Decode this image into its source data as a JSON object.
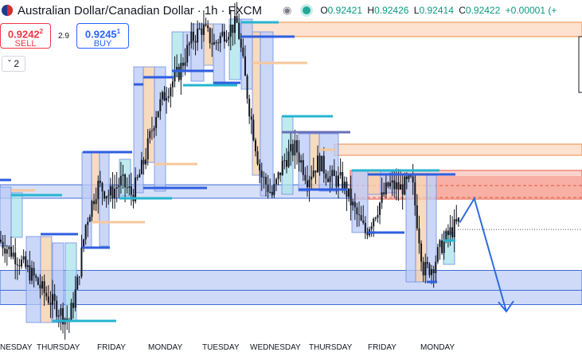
{
  "header": {
    "symbol_title": "Australian Dollar/Canadian Dollar",
    "separator": "·",
    "interval": "1h",
    "exchange": "FXCM",
    "eye_icon": "eye-icon",
    "status_color": "#26a69a",
    "ohlc": {
      "open_label": "O",
      "open": "0.92421",
      "high_label": "H",
      "high": "0.92426",
      "low_label": "L",
      "low": "0.92414",
      "close_label": "C",
      "close": "0.92422",
      "change": "+0.00001",
      "change_pct": "(+"
    }
  },
  "trade": {
    "sell_price_main": "0.9242",
    "sell_price_sup": "2",
    "sell_label": "SELL",
    "spread": "2.9",
    "buy_price_main": "0.9245",
    "buy_price_sup": "1",
    "buy_label": "BUY",
    "sell_color": "#f23645",
    "buy_color": "#2962ff"
  },
  "indicator_toggle": {
    "icon": "chevron-up-icon",
    "count": "2"
  },
  "x_axis_labels": [
    "NESDAY",
    "THURSDAY",
    "FRIDAY",
    "MONDAY",
    "TUESDAY",
    "WEDNESDAY",
    "THURSDAY",
    "FRIDAY",
    "MONDAY"
  ],
  "chart_data": {
    "type": "candlestick",
    "symbol": "AUDCAD",
    "interval": "1h",
    "last_price": 0.92422,
    "close_path": [
      {
        "t": 0,
        "v": 0.9239
      },
      {
        "t": 0.03,
        "v": 0.9234
      },
      {
        "t": 0.06,
        "v": 0.9228
      },
      {
        "t": 0.08,
        "v": 0.9223
      },
      {
        "t": 0.1,
        "v": 0.9219
      },
      {
        "t": 0.12,
        "v": 0.9215
      },
      {
        "t": 0.135,
        "v": 0.9226
      },
      {
        "t": 0.15,
        "v": 0.9244
      },
      {
        "t": 0.17,
        "v": 0.9255
      },
      {
        "t": 0.19,
        "v": 0.9252
      },
      {
        "t": 0.21,
        "v": 0.9256
      },
      {
        "t": 0.23,
        "v": 0.9252
      },
      {
        "t": 0.25,
        "v": 0.9262
      },
      {
        "t": 0.27,
        "v": 0.9276
      },
      {
        "t": 0.29,
        "v": 0.9283
      },
      {
        "t": 0.31,
        "v": 0.9288
      },
      {
        "t": 0.33,
        "v": 0.9297
      },
      {
        "t": 0.35,
        "v": 0.9301
      },
      {
        "t": 0.37,
        "v": 0.9296
      },
      {
        "t": 0.39,
        "v": 0.93
      },
      {
        "t": 0.41,
        "v": 0.9302
      },
      {
        "t": 0.43,
        "v": 0.9278
      },
      {
        "t": 0.45,
        "v": 0.9258
      },
      {
        "t": 0.47,
        "v": 0.9252
      },
      {
        "t": 0.49,
        "v": 0.9262
      },
      {
        "t": 0.51,
        "v": 0.9266
      },
      {
        "t": 0.53,
        "v": 0.9257
      },
      {
        "t": 0.55,
        "v": 0.9262
      },
      {
        "t": 0.57,
        "v": 0.9257
      },
      {
        "t": 0.59,
        "v": 0.9256
      },
      {
        "t": 0.61,
        "v": 0.9248
      },
      {
        "t": 0.63,
        "v": 0.9241
      },
      {
        "t": 0.65,
        "v": 0.9248
      },
      {
        "t": 0.67,
        "v": 0.9255
      },
      {
        "t": 0.69,
        "v": 0.9254
      },
      {
        "t": 0.71,
        "v": 0.9256
      },
      {
        "t": 0.72,
        "v": 0.9243
      },
      {
        "t": 0.73,
        "v": 0.923
      },
      {
        "t": 0.745,
        "v": 0.9231
      },
      {
        "t": 0.76,
        "v": 0.9237
      },
      {
        "t": 0.775,
        "v": 0.9241
      },
      {
        "t": 0.79,
        "v": 0.9244
      }
    ],
    "demand_zone": {
      "low": 0.922,
      "high": 0.923
    },
    "support_band": {
      "low": 0.9252,
      "high": 0.9255
    },
    "supply_zone_upper": {
      "low": 0.9298,
      "high": 0.93
    },
    "supply_zone_lower": {
      "low": 0.9257,
      "high": 0.9262
    },
    "projection": [
      {
        "t": 0.79,
        "v": 0.9244
      },
      {
        "t": 0.815,
        "v": 0.9251
      },
      {
        "t": 0.87,
        "v": 0.9218
      }
    ],
    "grid": false,
    "legend": "none"
  }
}
